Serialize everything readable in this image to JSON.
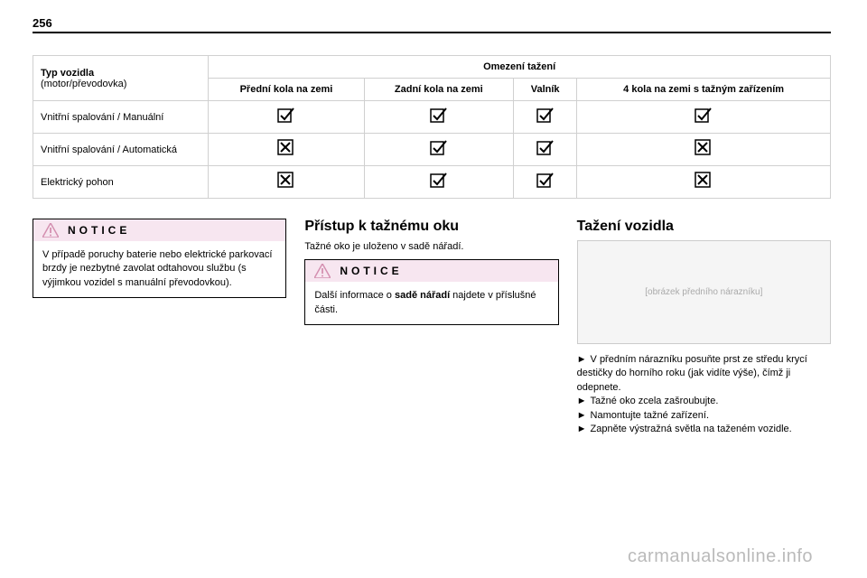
{
  "page_number": "256",
  "table": {
    "header_group": "Omezení tažení",
    "col1_header_line1": "Typ vozidla",
    "col1_header_line2": "(motor/převodovka)",
    "cols": {
      "c1": "Přední kola na zemi",
      "c2": "Zadní kola na zemi",
      "c3": "Valník",
      "c4": "4 kola na zemi s tažným zařízením"
    },
    "rows": [
      {
        "label": "Vnitřní spalování / Manuální",
        "vals": [
          "ok",
          "ok",
          "ok",
          "ok"
        ]
      },
      {
        "label": "Vnitřní spalování / Automatická",
        "vals": [
          "no",
          "ok",
          "ok",
          "no"
        ]
      },
      {
        "label": "Elektrický pohon",
        "vals": [
          "no",
          "ok",
          "ok",
          "no"
        ]
      }
    ],
    "icons": {
      "ok_border": "#000000",
      "ok_check": "#000000",
      "ok_fill": "#ffffff",
      "no_border": "#000000",
      "no_cross": "#000000",
      "no_fill": "#ffffff"
    }
  },
  "notice_label": "NOTICE",
  "notice_warn_color": "#d48fb0",
  "left_notice": "V případě poruchy baterie nebo elektrické parkovací brzdy je nezbytné zavolat odtahovou službu (s výjimkou vozidel s manuální převodovkou).",
  "mid": {
    "heading": "Přístup k tažnému oku",
    "text": "Tažné oko je uloženo v sadě nářadí.",
    "notice_pre": "Další informace o ",
    "notice_bold": "sadě nářadí",
    "notice_post": " najdete v příslušné části."
  },
  "right": {
    "heading": "Tažení vozidla",
    "figure_alt": "[obrázek předního nárazníku]",
    "b1": "V předním nárazníku posuňte prst ze středu krycí destičky do horního roku (jak vidíte výše), čímž ji odepnete.",
    "b2": "Tažné oko zcela zašroubujte.",
    "b3": "Namontujte tažné zařízení.",
    "b4": "Zapněte výstražná světla na taženém vozidle."
  },
  "watermark": "carmanualsonline.info"
}
